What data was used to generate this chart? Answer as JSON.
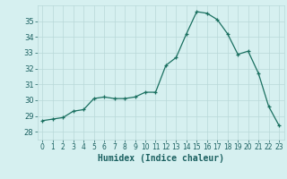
{
  "x": [
    0,
    1,
    2,
    3,
    4,
    5,
    6,
    7,
    8,
    9,
    10,
    11,
    12,
    13,
    14,
    15,
    16,
    17,
    18,
    19,
    20,
    21,
    22,
    23
  ],
  "y": [
    28.7,
    28.8,
    28.9,
    29.3,
    29.4,
    30.1,
    30.2,
    30.1,
    30.1,
    30.2,
    30.5,
    30.5,
    32.2,
    32.7,
    34.2,
    35.6,
    35.5,
    35.1,
    34.2,
    32.9,
    33.1,
    31.7,
    29.6,
    28.4
  ],
  "xlabel": "Humidex (Indice chaleur)",
  "xlim": [
    -0.5,
    23.5
  ],
  "ylim": [
    27.5,
    36.0
  ],
  "yticks": [
    28,
    29,
    30,
    31,
    32,
    33,
    34,
    35
  ],
  "xticks": [
    0,
    1,
    2,
    3,
    4,
    5,
    6,
    7,
    8,
    9,
    10,
    11,
    12,
    13,
    14,
    15,
    16,
    17,
    18,
    19,
    20,
    21,
    22,
    23
  ],
  "line_color": "#1a7060",
  "marker_color": "#1a7060",
  "bg_color": "#d6f0f0",
  "grid_color": "#b8d8d8",
  "tick_label_color": "#1a6060",
  "xlabel_color": "#1a6060"
}
